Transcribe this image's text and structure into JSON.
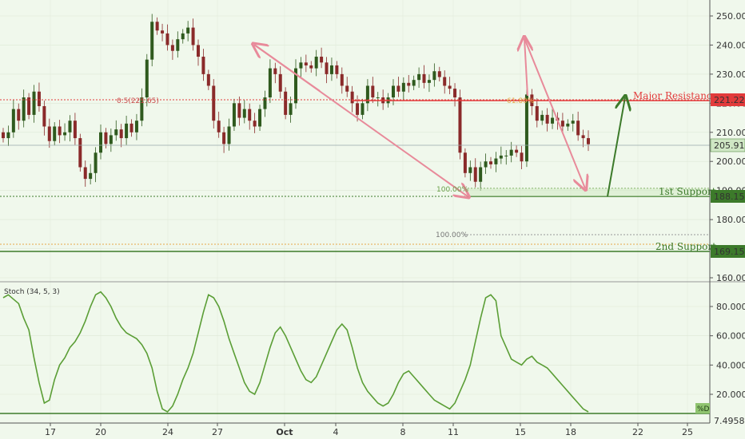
{
  "colors": {
    "background": "#f0f8ec",
    "candle_up": "#8a2a2a",
    "candle_down": "#2f5a1e",
    "resistance": "#e23b3b",
    "support": "#3c7a2a",
    "arrow_pink": "#e88a9a",
    "arrow_green": "#3c7a2a",
    "stoch_line": "#5b9e36",
    "dotted_red": "#e23b3b",
    "dotted_orange": "#e6a84a"
  },
  "price_axis": {
    "ticks": [
      "250.00",
      "240.00",
      "230.00",
      "220.00",
      "210.00",
      "200.00",
      "190.00",
      "180.00",
      "170.00",
      "160.00"
    ],
    "current_price": "205.91"
  },
  "date_axis": {
    "ticks": [
      "17",
      "20",
      "24",
      "27",
      "Oct",
      "4",
      "8",
      "11",
      "15",
      "18",
      "22",
      "25"
    ]
  },
  "levels": {
    "major_resistance": {
      "label": "Major Resistance",
      "value": "221.22"
    },
    "first_support": {
      "label": "1st Support",
      "value": "188.15"
    },
    "second_support": {
      "label": "2nd Support",
      "value": "169.15"
    },
    "fib_label": "0.5(221.65)",
    "fib_100_a": "100.00%",
    "fib_100_b": "100.00%",
    "fib_618": "61.80%"
  },
  "stoch": {
    "title": "Stoch (34, 5, 3)",
    "ticks": [
      "80.0000",
      "60.0000",
      "40.0000",
      "20.0000"
    ],
    "tag": "%D",
    "last_value": "7.4958"
  },
  "chart_data": [
    {
      "type": "candlestick",
      "title": "",
      "xlabel": "",
      "ylabel": "",
      "ylim": [
        155,
        257
      ],
      "x_tick_labels": [
        "17",
        "20",
        "24",
        "27",
        "Oct",
        "4",
        "8",
        "11",
        "15",
        "18",
        "22",
        "25"
      ],
      "y_tick_labels": [
        "250.00",
        "240.00",
        "230.00",
        "220.00",
        "210.00",
        "200.00",
        "190.00",
        "180.00",
        "170.00",
        "160.00"
      ],
      "close_path": [
        208,
        210,
        218,
        214,
        222,
        216,
        224,
        219,
        212,
        207,
        212,
        209,
        210,
        214,
        208,
        198,
        194,
        196,
        203,
        210,
        206,
        209,
        211,
        208,
        213,
        210,
        214,
        222,
        235,
        248,
        245,
        244,
        240,
        238,
        242,
        244,
        246,
        240,
        236,
        230,
        226,
        214,
        210,
        206,
        212,
        220,
        215,
        218,
        214,
        212,
        218,
        222,
        232,
        230,
        224,
        216,
        220,
        232,
        234,
        233,
        232,
        236,
        234,
        230,
        233,
        230,
        226,
        224,
        220,
        216,
        220,
        226,
        222,
        222,
        220,
        222,
        226,
        224,
        227,
        226,
        228,
        230,
        227,
        228,
        231,
        229,
        226,
        225,
        222,
        203,
        196,
        198,
        193,
        198,
        200,
        199,
        201,
        202,
        202,
        204,
        203,
        200,
        223,
        219,
        214,
        216,
        213,
        215,
        214,
        212,
        213,
        214,
        209,
        208,
        205.91
      ],
      "last_price": 205.91
    },
    {
      "type": "line",
      "title": "Stoch (34, 5, 3)",
      "series": [
        {
          "name": "%D",
          "values": [
            86,
            88,
            85,
            82,
            72,
            64,
            45,
            28,
            14,
            16,
            30,
            40,
            45,
            52,
            56,
            62,
            70,
            80,
            88,
            90,
            86,
            80,
            72,
            66,
            62,
            60,
            58,
            54,
            48,
            38,
            22,
            10,
            8,
            12,
            20,
            30,
            38,
            48,
            62,
            76,
            88,
            86,
            80,
            70,
            58,
            48,
            38,
            28,
            22,
            20,
            28,
            40,
            52,
            62,
            66,
            60,
            52,
            44,
            36,
            30,
            28,
            32,
            40,
            48,
            56,
            64,
            68,
            64,
            52,
            38,
            28,
            22,
            18,
            14,
            12,
            14,
            20,
            28,
            34,
            36,
            32,
            28,
            24,
            20,
            16,
            14,
            12,
            10,
            14,
            22,
            30,
            40,
            56,
            72,
            86,
            88,
            84,
            60,
            52,
            44,
            42,
            40,
            44,
            46,
            42,
            40,
            38,
            34,
            30,
            26,
            22,
            18,
            14,
            10,
            8
          ]
        }
      ],
      "ylim": [
        0,
        100
      ],
      "y_tick_labels": [
        "80.0000",
        "60.0000",
        "40.0000",
        "20.0000"
      ],
      "last_value": 7.4958
    }
  ]
}
